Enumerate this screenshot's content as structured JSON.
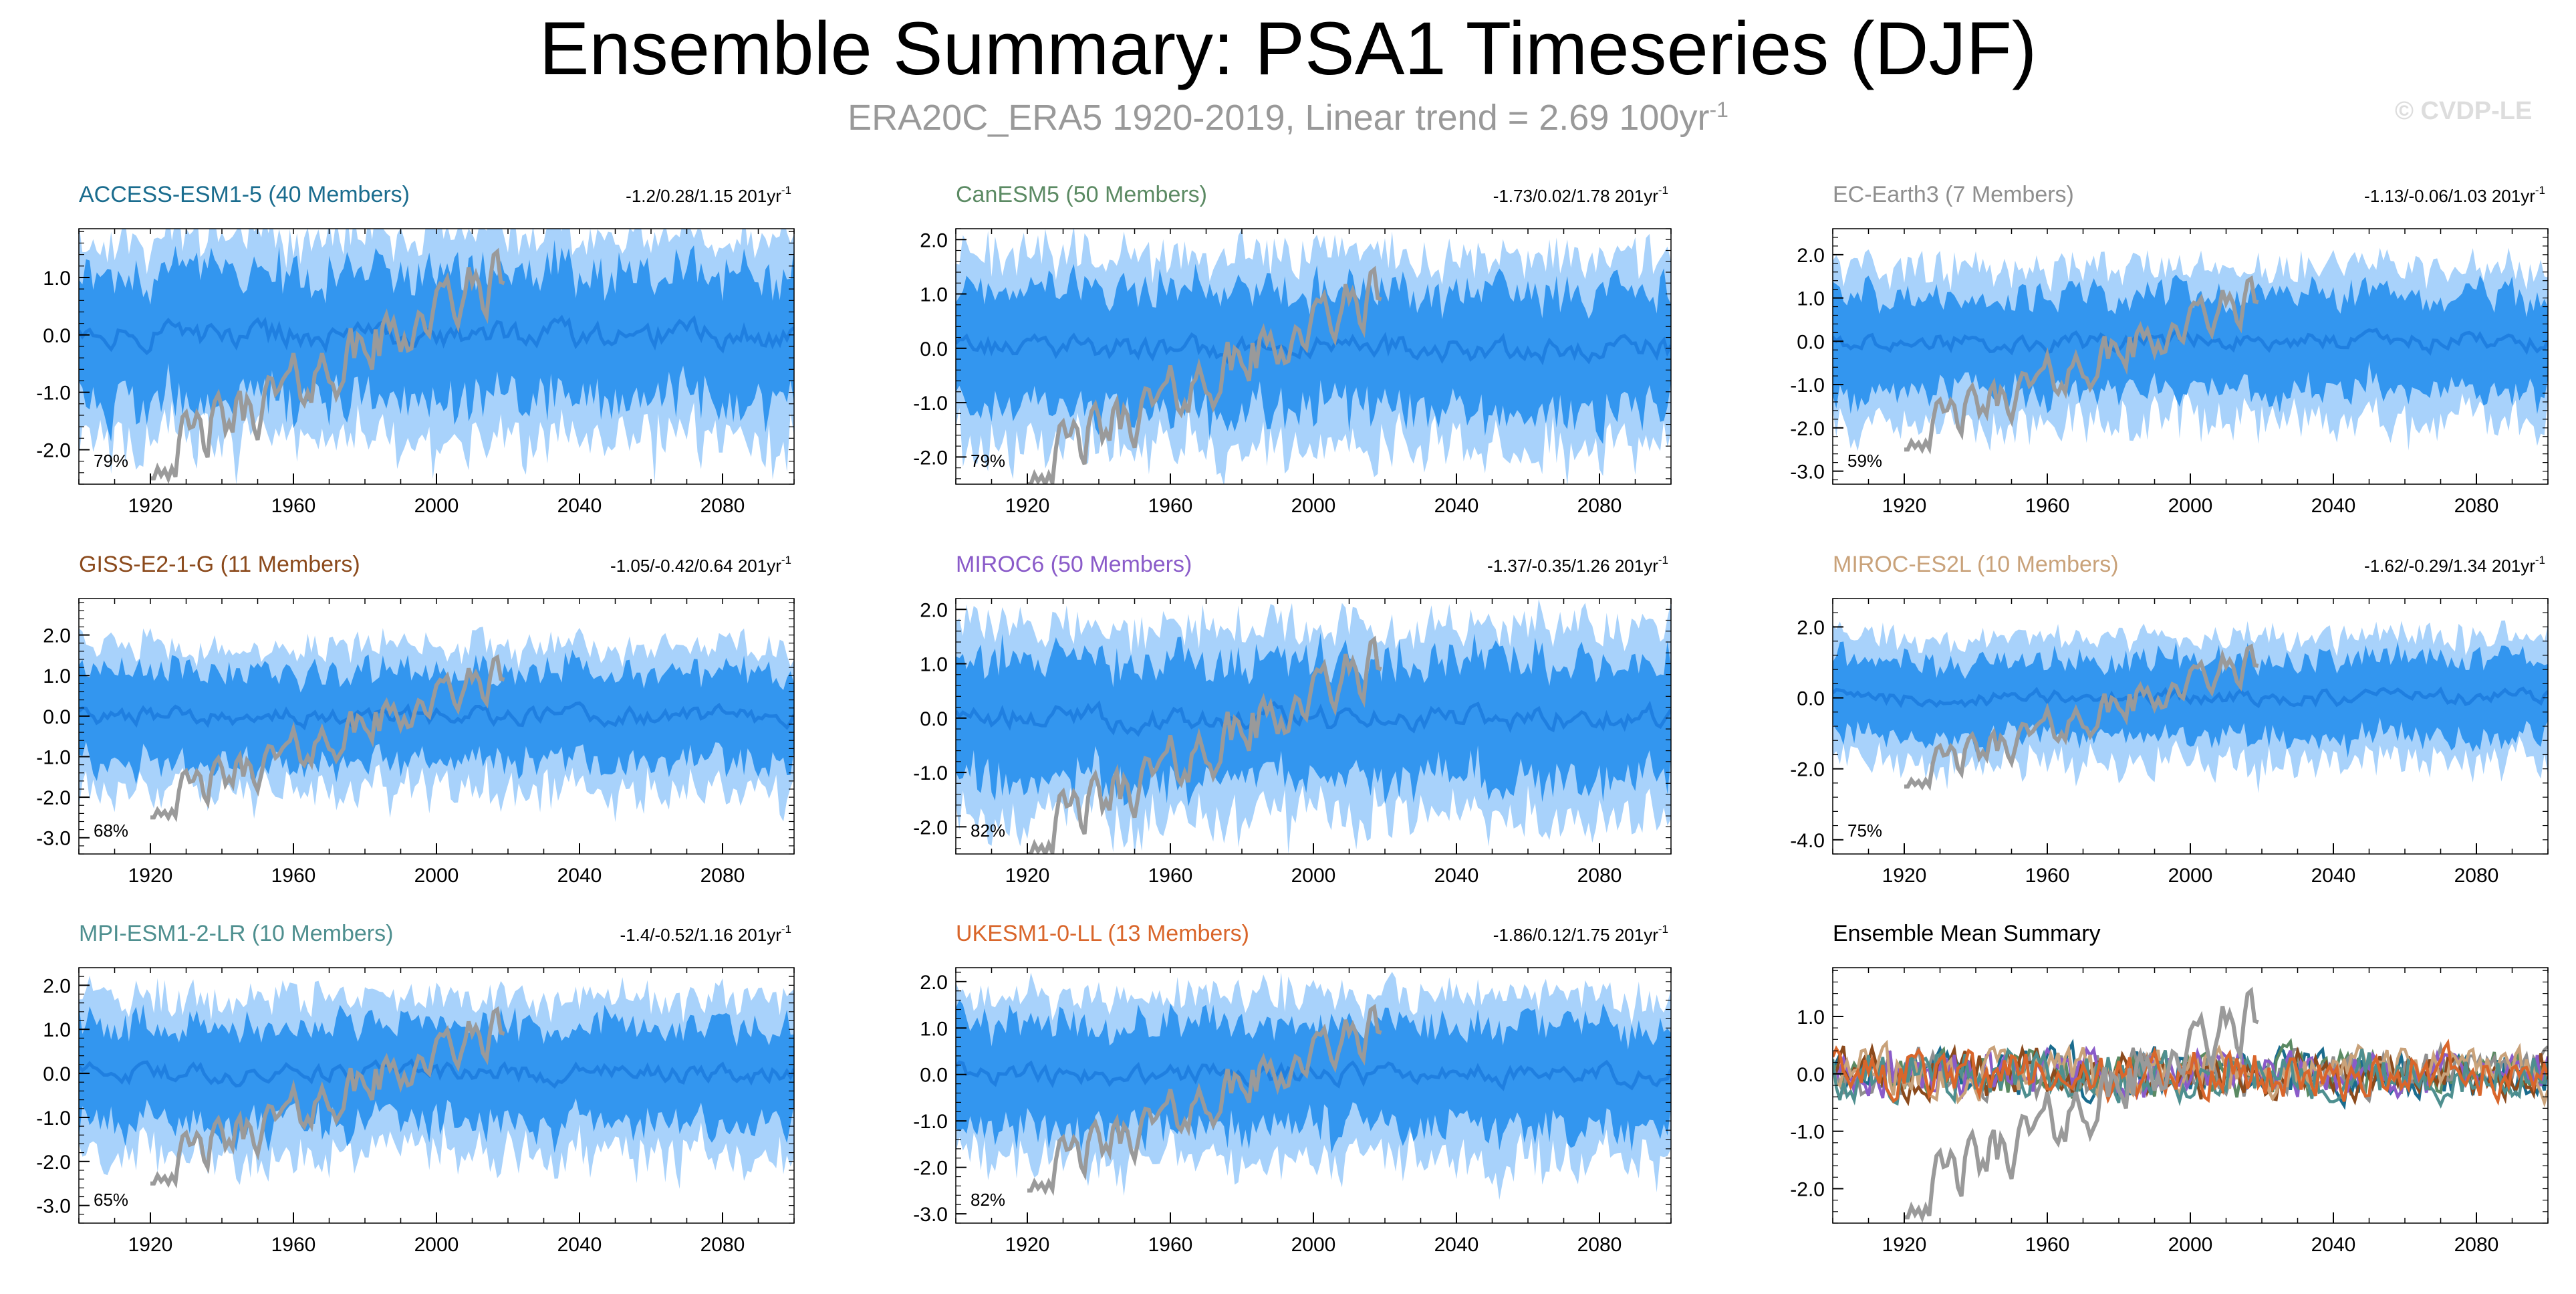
{
  "title": "Ensemble Summary: PSA1 Timeseries (DJF)",
  "subtitle": {
    "text": "ERA20C_ERA5 1920-2019, Linear trend = 2.69 100yr",
    "superscript": "-1"
  },
  "copyright": "© CVDP-LE",
  "colors": {
    "band_outer": "#a8d2fb",
    "band_inner": "#3396ef",
    "ensemble_mean": "#1f7fe0",
    "observations": "#9a9a9a"
  },
  "chart_data": [
    {
      "type": "area",
      "title": "ACCESS-ESM1-5 (40 Members)",
      "title_color": "#1a6c8e",
      "stats": "-1.2/0.28/1.15 201yr",
      "stats_superscript": "-1",
      "percent": "79%",
      "xlim": [
        1900,
        2100
      ],
      "ylim": [
        -2.6,
        1.85
      ],
      "x_ticks": [
        "1920",
        "1960",
        "2000",
        "2040",
        "2080"
      ],
      "y_ticks": [
        "1.0",
        "0.0",
        "-1.0",
        "-2.0"
      ],
      "y_tick_values": [
        1,
        0,
        -1,
        -2
      ],
      "series": [
        {
          "name": "",
          "x": [
            1900,
            2100
          ]
        }
      ]
    },
    {
      "type": "area",
      "title": "CanESM5 (50 Members)",
      "title_color": "#5b8a63",
      "stats": "-1.73/0.02/1.78 201yr",
      "stats_superscript": "-1",
      "percent": "79%",
      "xlim": [
        1900,
        2100
      ],
      "ylim": [
        -2.5,
        2.2
      ],
      "x_ticks": [
        "1920",
        "1960",
        "2000",
        "2040",
        "2080"
      ],
      "y_ticks": [
        "2.0",
        "1.0",
        "0.0",
        "-1.0",
        "-2.0"
      ],
      "y_tick_values": [
        2,
        1,
        0,
        -1,
        -2
      ],
      "series": [
        {
          "name": "",
          "x": [
            1900,
            2100
          ]
        }
      ]
    },
    {
      "type": "area",
      "title": "EC-Earth3 (7 Members)",
      "title_color": "#8f8f8f",
      "stats": "-1.13/-0.06/1.03 201yr",
      "stats_superscript": "-1",
      "percent": "59%",
      "xlim": [
        1900,
        2100
      ],
      "ylim": [
        -3.3,
        2.6
      ],
      "x_ticks": [
        "1920",
        "1960",
        "2000",
        "2040",
        "2080"
      ],
      "y_ticks": [
        "2.0",
        "1.0",
        "0.0",
        "-1.0",
        "-2.0",
        "-3.0"
      ],
      "y_tick_values": [
        2,
        1,
        0,
        -1,
        -2,
        -3
      ],
      "series": [
        {
          "name": "",
          "x": [
            1900,
            2100
          ]
        }
      ]
    },
    {
      "type": "area",
      "title": "GISS-E2-1-G (11 Members)",
      "title_color": "#8b4a1c",
      "stats": "-1.05/-0.42/0.64 201yr",
      "stats_superscript": "-1",
      "percent": "68%",
      "xlim": [
        1900,
        2100
      ],
      "ylim": [
        -3.4,
        2.9
      ],
      "x_ticks": [
        "1920",
        "1960",
        "2000",
        "2040",
        "2080"
      ],
      "y_ticks": [
        "2.0",
        "1.0",
        "0.0",
        "-1.0",
        "-2.0",
        "-3.0"
      ],
      "y_tick_values": [
        2,
        1,
        0,
        -1,
        -2,
        -3
      ],
      "series": [
        {
          "name": "",
          "x": [
            1900,
            2100
          ]
        }
      ]
    },
    {
      "type": "area",
      "title": "MIROC6 (50 Members)",
      "title_color": "#8a5bc9",
      "stats": "-1.37/-0.35/1.26 201yr",
      "stats_superscript": "-1",
      "percent": "82%",
      "xlim": [
        1900,
        2100
      ],
      "ylim": [
        -2.5,
        2.2
      ],
      "x_ticks": [
        "1920",
        "1960",
        "2000",
        "2040",
        "2080"
      ],
      "y_ticks": [
        "2.0",
        "1.0",
        "0.0",
        "-1.0",
        "-2.0"
      ],
      "y_tick_values": [
        2,
        1,
        0,
        -1,
        -2
      ],
      "series": [
        {
          "name": "",
          "x": [
            1900,
            2100
          ]
        }
      ]
    },
    {
      "type": "area",
      "title": "MIROC-ES2L (10 Members)",
      "title_color": "#c9a27a",
      "stats": "-1.62/-0.29/1.34 201yr",
      "stats_superscript": "-1",
      "percent": "75%",
      "xlim": [
        1900,
        2100
      ],
      "ylim": [
        -4.4,
        2.8
      ],
      "x_ticks": [
        "1920",
        "1960",
        "2000",
        "2040",
        "2080"
      ],
      "y_ticks": [
        "2.0",
        "0.0",
        "-2.0",
        "-4.0"
      ],
      "y_tick_values": [
        2,
        0,
        -2,
        -4
      ],
      "series": [
        {
          "name": "",
          "x": [
            1900,
            2100
          ]
        }
      ]
    },
    {
      "type": "area",
      "title": "MPI-ESM1-2-LR (10 Members)",
      "title_color": "#4e8f8f",
      "stats": "-1.4/-0.52/1.16 201yr",
      "stats_superscript": "-1",
      "percent": "65%",
      "xlim": [
        1900,
        2100
      ],
      "ylim": [
        -3.4,
        2.4
      ],
      "x_ticks": [
        "1920",
        "1960",
        "2000",
        "2040",
        "2080"
      ],
      "y_ticks": [
        "2.0",
        "1.0",
        "0.0",
        "-1.0",
        "-2.0",
        "-3.0"
      ],
      "y_tick_values": [
        2,
        1,
        0,
        -1,
        -2,
        -3
      ],
      "series": [
        {
          "name": "",
          "x": [
            1900,
            2100
          ]
        }
      ]
    },
    {
      "type": "area",
      "title": "UKESM1-0-LL (13 Members)",
      "title_color": "#d9662b",
      "stats": "-1.86/0.12/1.75 201yr",
      "stats_superscript": "-1",
      "percent": "82%",
      "xlim": [
        1900,
        2100
      ],
      "ylim": [
        -3.2,
        2.3
      ],
      "x_ticks": [
        "1920",
        "1960",
        "2000",
        "2040",
        "2080"
      ],
      "y_ticks": [
        "2.0",
        "1.0",
        "0.0",
        "-1.0",
        "-2.0",
        "-3.0"
      ],
      "y_tick_values": [
        2,
        1,
        0,
        -1,
        -2,
        -3
      ],
      "series": [
        {
          "name": "",
          "x": [
            1900,
            2100
          ]
        }
      ]
    },
    {
      "type": "line",
      "title": "Ensemble Mean Summary",
      "title_color": "#000000",
      "stats": "",
      "stats_superscript": "",
      "percent": "",
      "xlim": [
        1900,
        2100
      ],
      "ylim": [
        -2.6,
        1.85
      ],
      "x_ticks": [
        "1920",
        "1960",
        "2000",
        "2040",
        "2080"
      ],
      "y_ticks": [
        "1.0",
        "0.0",
        "-1.0",
        "-2.0"
      ],
      "y_tick_values": [
        1,
        0,
        -1,
        -2
      ],
      "series_colors": [
        "#1a6c8e",
        "#5b8a63",
        "#8f8f8f",
        "#8b4a1c",
        "#8a5bc9",
        "#c9a27a",
        "#4e8f8f",
        "#d9662b"
      ]
    }
  ]
}
